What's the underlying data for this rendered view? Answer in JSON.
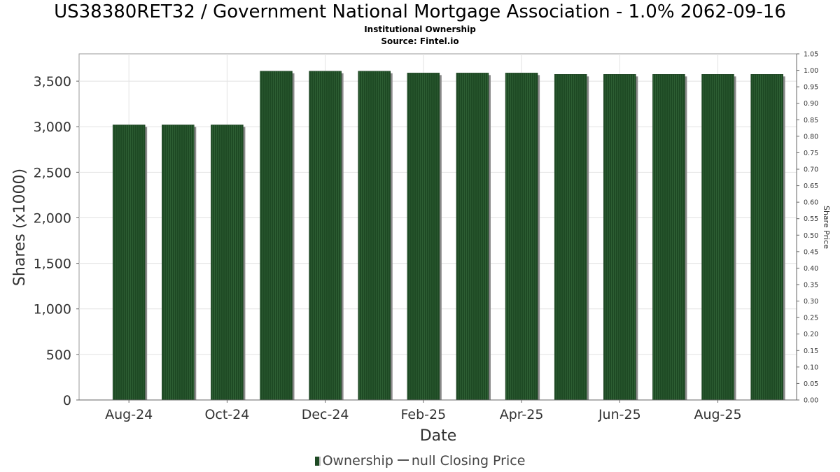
{
  "header": {
    "title": "US38380RET32 / Government National Mortgage Association - 1.0% 2062-09-16",
    "subtitle": "Institutional Ownership",
    "source": "Source: Fintel.io"
  },
  "legend": {
    "ownership": "Ownership",
    "price": "null Closing Price"
  },
  "colors": {
    "bar": "#1e4a24",
    "bar_shadow": "#8a8a8a",
    "grid": "#e2e2e2",
    "axis_text": "#333333"
  },
  "chart_data": {
    "type": "bar",
    "title": "US38380RET32 / Government National Mortgage Association - 1.0% 2062-09-16",
    "subtitle": "Institutional Ownership",
    "xlabel": "Date",
    "ylabel": "Shares (x1000)",
    "y2label": "Share Price",
    "x_ticks": [
      "Aug-24",
      "Oct-24",
      "Dec-24",
      "Feb-25",
      "Apr-25",
      "Jun-25",
      "Aug-25"
    ],
    "ylim": [
      0,
      3800
    ],
    "y_ticks": [
      0,
      500,
      1000,
      1500,
      2000,
      2500,
      3000,
      3500
    ],
    "y2lim": [
      0,
      1.05
    ],
    "y2_ticks": [
      "0.00",
      "0.05",
      "0.10",
      "0.15",
      "0.20",
      "0.25",
      "0.30",
      "0.35",
      "0.40",
      "0.45",
      "0.50",
      "0.55",
      "0.60",
      "0.65",
      "0.70",
      "0.75",
      "0.80",
      "0.85",
      "0.90",
      "0.95",
      "1.00",
      "1.05"
    ],
    "grid": true,
    "legend_position": "bottom",
    "series": [
      {
        "name": "Ownership",
        "values": [
          3020,
          3020,
          3020,
          3610,
          3610,
          3610,
          3590,
          3590,
          3590,
          3575,
          3575,
          3575,
          3575,
          3575
        ]
      }
    ]
  }
}
